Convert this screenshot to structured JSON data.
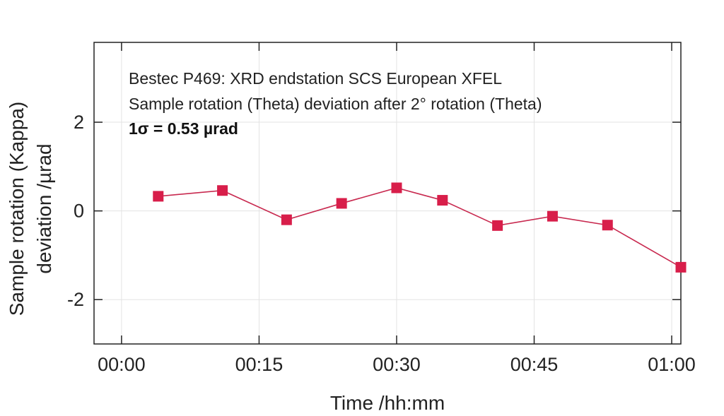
{
  "chart_data": {
    "type": "line",
    "title": "",
    "xlabel": "Time /hh:mm",
    "ylabel_lines": [
      "Sample rotation (Kappa)",
      "deviation /µrad"
    ],
    "x_tick_labels": [
      "00:00",
      "00:15",
      "00:30",
      "00:45",
      "01:00"
    ],
    "x_ticks_minutes": [
      0,
      15,
      30,
      45,
      60
    ],
    "y_ticks": [
      -2,
      0,
      2
    ],
    "y_tick_labels": [
      "-2",
      "0",
      "2"
    ],
    "xlim_minutes": [
      -3,
      61
    ],
    "ylim": [
      -3,
      3.8
    ],
    "grid": true,
    "annotations": [
      "Bestec P469: XRD endstation SCS European XFEL",
      "Sample rotation (Theta) deviation after 2° rotation (Theta)",
      "1σ = 0.53 µrad"
    ],
    "series": [
      {
        "x_time": [
          "00:04",
          "00:11",
          "00:18",
          "00:24",
          "00:30",
          "00:35",
          "00:41",
          "00:47",
          "00:53",
          "01:01"
        ],
        "values": [
          0.33,
          0.46,
          -0.2,
          0.17,
          0.52,
          0.24,
          -0.33,
          -0.12,
          -0.32,
          -1.27
        ]
      }
    ],
    "colors": {
      "series": "#d81e4a",
      "line": "#c8294f",
      "axis": "#222222",
      "grid": "#e3e3e3"
    }
  }
}
